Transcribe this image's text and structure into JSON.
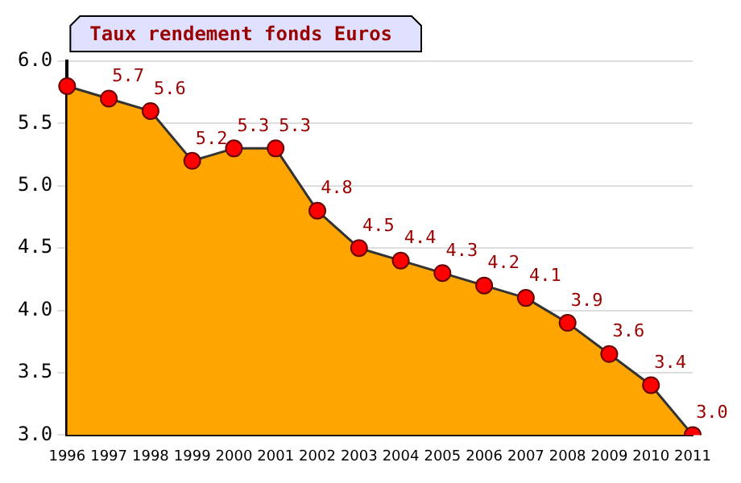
{
  "chart_data": {
    "type": "area",
    "title": "Taux rendement fonds Euros",
    "categories": [
      "1996",
      "1997",
      "1998",
      "1999",
      "2000",
      "2001",
      "2002",
      "2003",
      "2004",
      "2005",
      "2006",
      "2007",
      "2008",
      "2009",
      "2010",
      "2011"
    ],
    "series": [
      {
        "color": "#ffa500",
        "values": [
          5.8,
          5.7,
          5.6,
          5.2,
          5.3,
          5.3,
          4.8,
          4.5,
          4.4,
          4.3,
          4.2,
          4.1,
          3.9,
          3.65,
          3.4,
          3.0
        ],
        "value_labels": [
          null,
          "5.7",
          "5.6",
          "5.2",
          "5.3",
          "5.3",
          "4.8",
          "4.5",
          "4.4",
          "4.3",
          "4.2",
          "4.1",
          "3.9",
          "3.6",
          "3.4",
          "3.0"
        ]
      }
    ],
    "ylim": [
      3.0,
      6.0
    ],
    "yticks": [
      {
        "value": 3.0,
        "label": "3.0"
      },
      {
        "value": 3.5,
        "label": "3.5"
      },
      {
        "value": 4.0,
        "label": "4.0"
      },
      {
        "value": 4.5,
        "label": "4.5"
      },
      {
        "value": 5.0,
        "label": "5.0"
      },
      {
        "value": 5.5,
        "label": "5.5"
      },
      {
        "value": 6.0,
        "label": "6.0"
      }
    ],
    "grid": "y",
    "marker": "circle",
    "legend": false
  }
}
